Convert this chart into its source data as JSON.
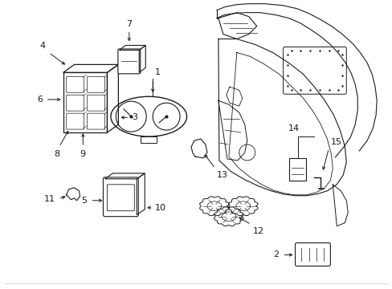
{
  "bg_color": "#ffffff",
  "line_color": "#1a1a1a",
  "fig_width": 4.89,
  "fig_height": 3.6,
  "dpi": 100,
  "label_fontsize": 8,
  "label_color": "#1a1a1a"
}
